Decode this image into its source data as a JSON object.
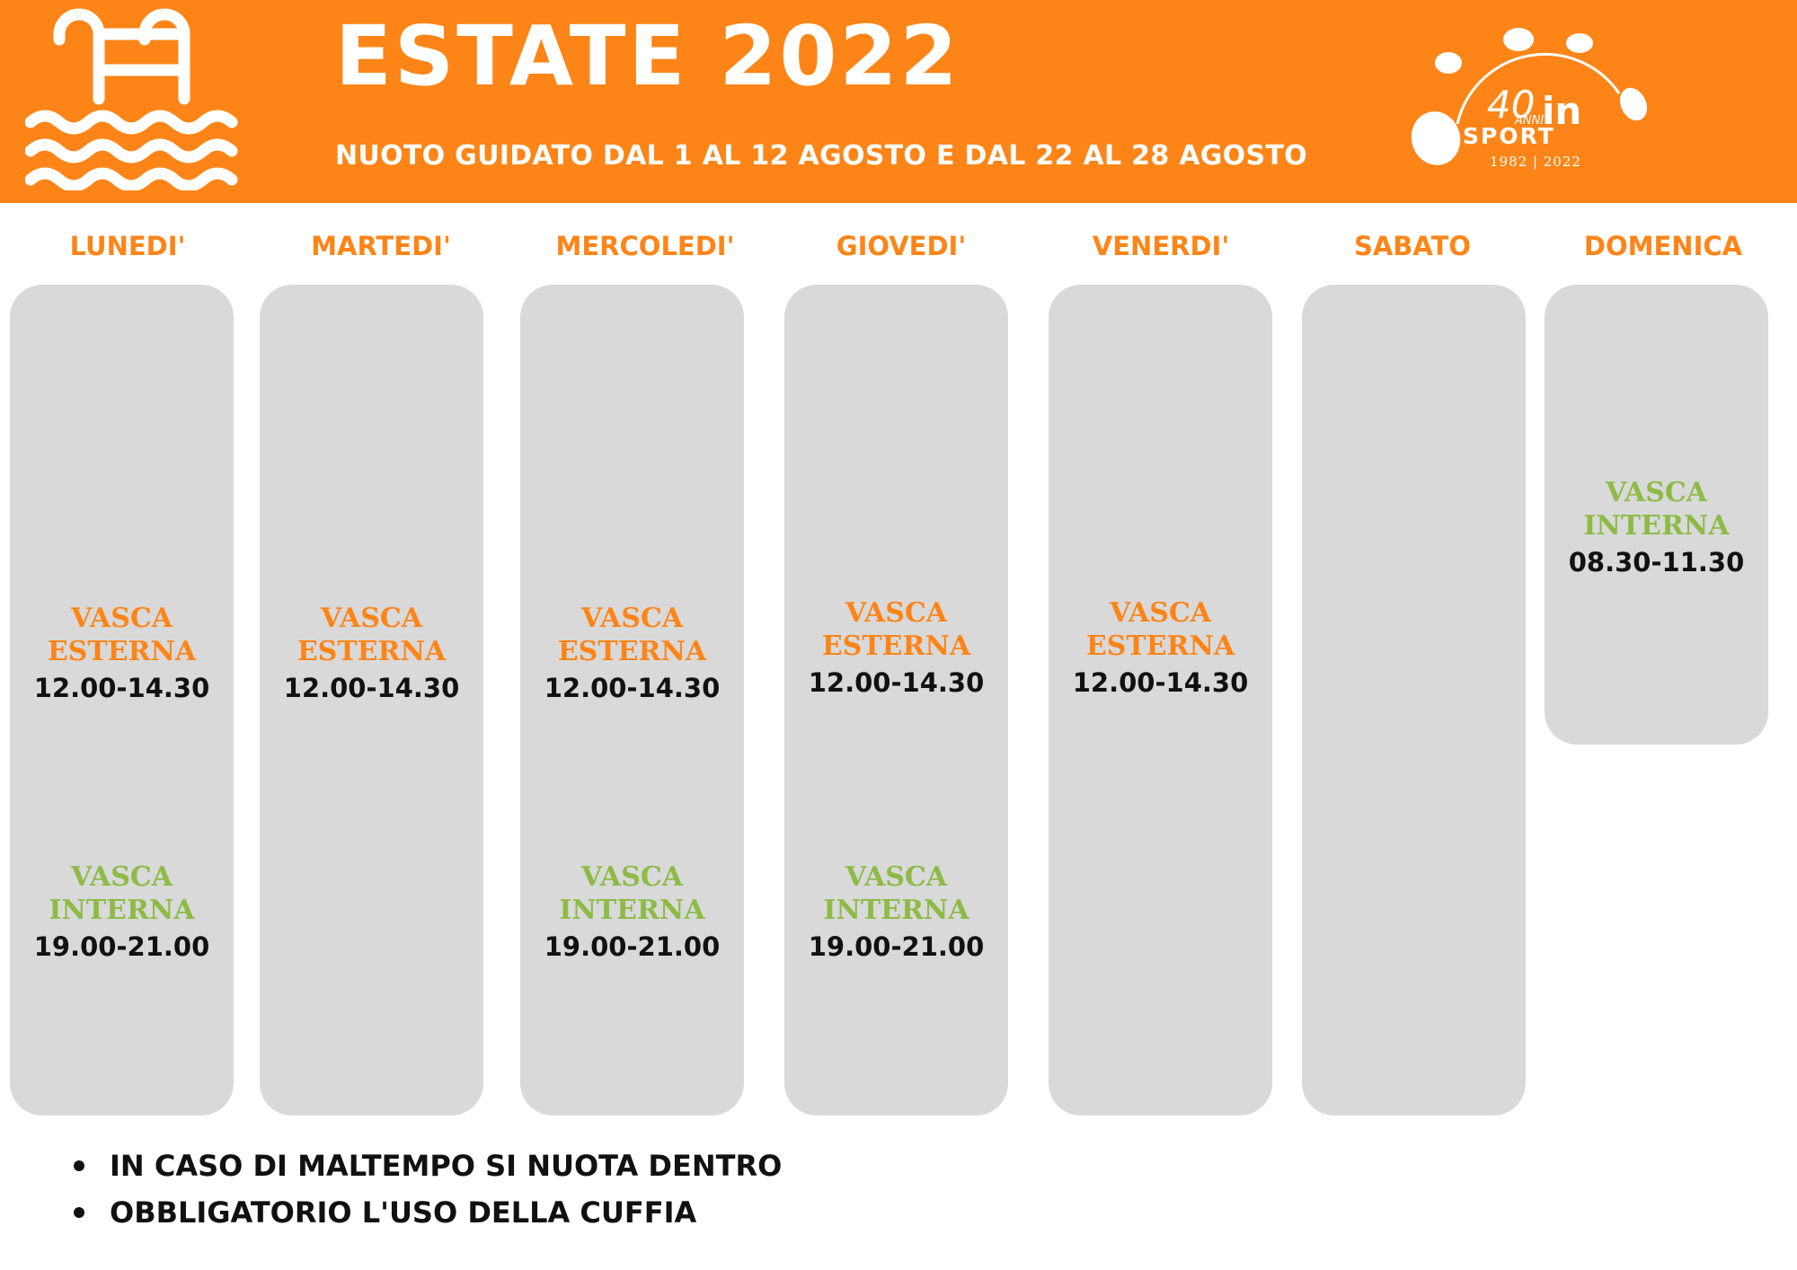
{
  "header": {
    "title": "ESTATE 2022",
    "subtitle": "NUOTO GUIDATO DAL 1  AL 12 AGOSTO E DAL 22 AL 28 AGOSTO",
    "icon": "pool-ladder-icon",
    "logo": {
      "number": "40",
      "anni": "ANNI",
      "in": "in",
      "sport": "SPORT",
      "years": "1982 | 2022"
    }
  },
  "colors": {
    "brand_orange": "#fd8518",
    "interna_green": "#8dbb45",
    "card_gray": "#d9d9d9"
  },
  "schedule": {
    "days": [
      {
        "label": "LUNEDI'",
        "slots": [
          {
            "pool": "VASCA ESTERNA",
            "time": "12.00-14.30"
          },
          {
            "pool": "VASCA INTERNA",
            "time": "19.00-21.00"
          }
        ]
      },
      {
        "label": "MARTEDI'",
        "slots": [
          {
            "pool": "VASCA ESTERNA",
            "time": "12.00-14.30"
          }
        ]
      },
      {
        "label": "MERCOLEDI'",
        "slots": [
          {
            "pool": "VASCA ESTERNA",
            "time": "12.00-14.30"
          },
          {
            "pool": "VASCA INTERNA",
            "time": "19.00-21.00"
          }
        ]
      },
      {
        "label": "GIOVEDI'",
        "slots": [
          {
            "pool": "VASCA ESTERNA",
            "time": "12.00-14.30"
          },
          {
            "pool": "VASCA INTERNA",
            "time": "19.00-21.00"
          }
        ]
      },
      {
        "label": "VENERDI'",
        "slots": [
          {
            "pool": "VASCA ESTERNA",
            "time": "12.00-14.30"
          }
        ]
      },
      {
        "label": "SABATO",
        "slots": []
      },
      {
        "label": "DOMENICA",
        "slots": [
          {
            "pool": "VASCA INTERNA",
            "time": "08.30-11.30"
          }
        ]
      }
    ]
  },
  "notes": [
    "IN CASO DI MALTEMPO SI NUOTA DENTRO",
    "OBBLIGATORIO L'USO DELLA CUFFIA"
  ]
}
